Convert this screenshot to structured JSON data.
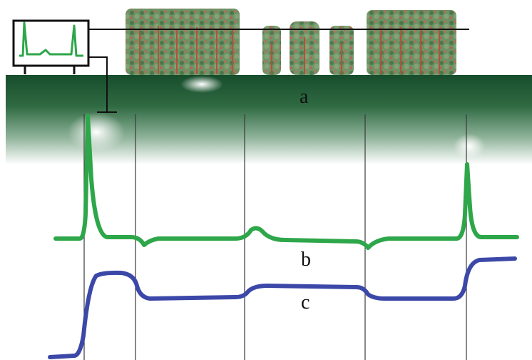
{
  "labels": {
    "a": "a",
    "b": "b",
    "c": "c"
  },
  "colors": {
    "ground_dark": "#174d2c",
    "ground_mid": "#3f7a52",
    "trace_b": "#2ea64a",
    "trace_c": "#3c48a8",
    "divider": "#3a3a3a",
    "tree_foliage": "#4c7a4a",
    "tree_trunk": "#b0533a"
  },
  "icons": [
    "monitor-icon",
    "tree-stand-icon"
  ]
}
